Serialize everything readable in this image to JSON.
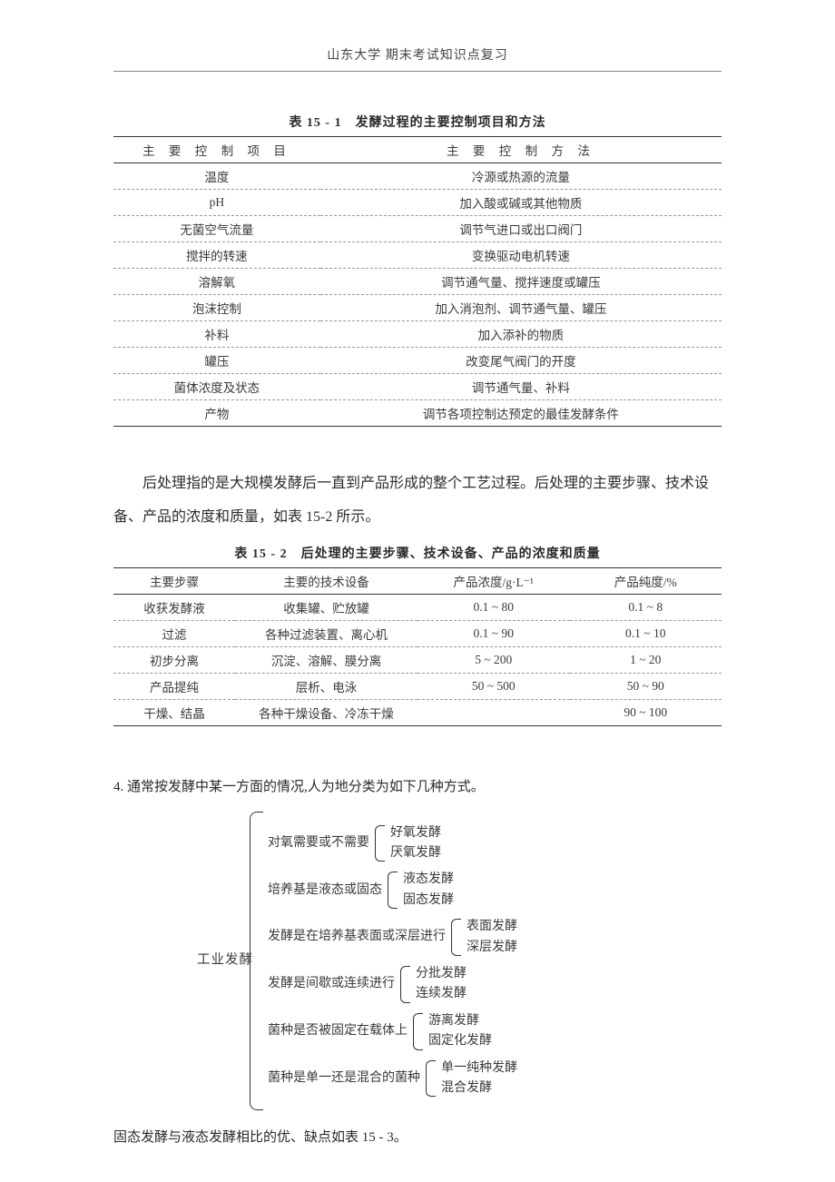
{
  "header": "山东大学 期末考试知识点复习",
  "table1": {
    "caption": "表 15 - 1　发酵过程的主要控制项目和方法",
    "columns": [
      "主 要 控 制 项 目",
      "主 要 控 制 方 法"
    ],
    "rows": [
      [
        "温度",
        "冷源或热源的流量"
      ],
      [
        "pH",
        "加入酸或碱或其他物质"
      ],
      [
        "无菌空气流量",
        "调节气进口或出口阀门"
      ],
      [
        "搅拌的转速",
        "变换驱动电机转速"
      ],
      [
        "溶解氧",
        "调节通气量、搅拌速度或罐压"
      ],
      [
        "泡沫控制",
        "加入消泡剂、调节通气量、罐压"
      ],
      [
        "补料",
        "加入添补的物质"
      ],
      [
        "罐压",
        "改变尾气阀门的开度"
      ],
      [
        "菌体浓度及状态",
        "调节通气量、补料"
      ],
      [
        "产物",
        "调节各项控制达预定的最佳发酵条件"
      ]
    ]
  },
  "paragraph": "后处理指的是大规模发酵后一直到产品形成的整个工艺过程。后处理的主要步骤、技术设备、产品的浓度和质量，如表 15-2 所示。",
  "table2": {
    "caption": "表 15 - 2　后处理的主要步骤、技术设备、产品的浓度和质量",
    "columns": [
      "主要步骤",
      "主要的技术设备",
      "产品浓度/g·L⁻¹",
      "产品纯度/%"
    ],
    "rows": [
      [
        "收获发酵液",
        "收集罐、贮放罐",
        "0.1 ~ 80",
        "0.1 ~ 8"
      ],
      [
        "过滤",
        "各种过滤装置、离心机",
        "0.1 ~ 90",
        "0.1 ~ 10"
      ],
      [
        "初步分离",
        "沉淀、溶解、膜分离",
        "5 ~ 200",
        "1 ~ 20"
      ],
      [
        "产品提纯",
        "层析、电泳",
        "50 ~ 500",
        "50 ~ 90"
      ],
      [
        "干燥、结晶",
        "各种干燥设备、冷冻干燥",
        "",
        "90 ~ 100"
      ]
    ]
  },
  "section4_intro": "4. 通常按发酵中某一方面的情况,人为地分类为如下几种方式。",
  "tree": {
    "root": "工业发酵",
    "branches": [
      {
        "label": "对氧需要或不需要",
        "leaves": [
          "好氧发酵",
          "厌氧发酵"
        ]
      },
      {
        "label": "培养基是液态或固态",
        "leaves": [
          "液态发酵",
          "固态发酵"
        ]
      },
      {
        "label": "发酵是在培养基表面或深层进行",
        "leaves": [
          "表面发酵",
          "深层发酵"
        ]
      },
      {
        "label": "发酵是间歇或连续进行",
        "leaves": [
          "分批发酵",
          "连续发酵"
        ]
      },
      {
        "label": "菌种是否被固定在载体上",
        "leaves": [
          "游离发酵",
          "固定化发酵"
        ]
      },
      {
        "label": "菌种是单一还是混合的菌种",
        "leaves": [
          "单一纯种发酵",
          "混合发酵"
        ]
      }
    ]
  },
  "footline": "固态发酵与液态发酵相比的优、缺点如表 15 - 3。",
  "colors": {
    "text": "#3a3a3a",
    "border_strong": "#333333",
    "border_dashed": "#999999",
    "background": "#ffffff"
  }
}
